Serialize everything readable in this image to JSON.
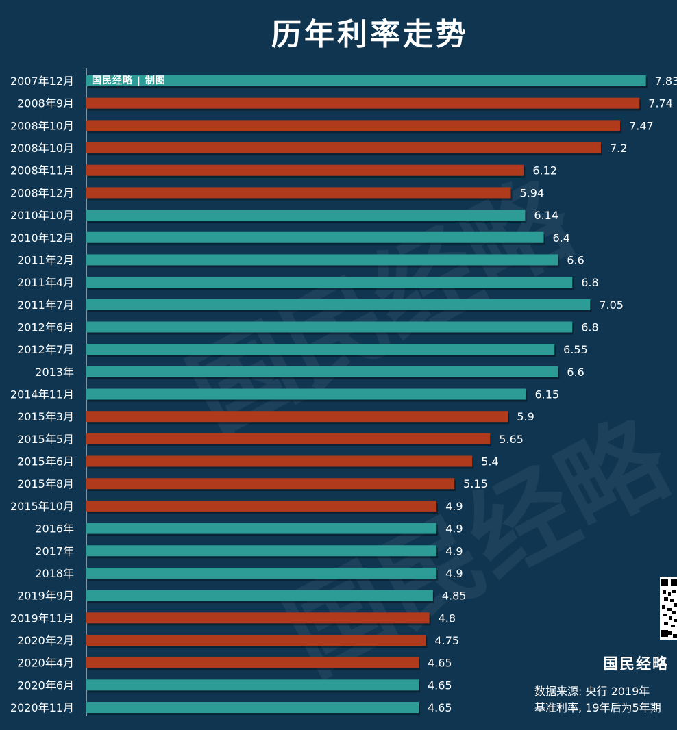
{
  "title": "历年利率走势",
  "credit": "国民经略 | 制图",
  "watermark": "国民经略",
  "brand": "国民经略",
  "source_line1": "数据来源:  央行    2019年",
  "source_line2": "基准利率,  19年后为5年期",
  "colors": {
    "background": "#0f3551",
    "rise_or_flat": "#2e9c96",
    "cut": "#b03b1c",
    "axis": "#7a94a8",
    "text": "#ffffff"
  },
  "chart_data": {
    "type": "bar",
    "orientation": "horizontal",
    "title": "历年利率走势",
    "categories": [
      "2007年12月",
      "2008年9月",
      "2008年10月",
      "2008年10月",
      "2008年11月",
      "2008年12月",
      "2010年10月",
      "2010年12月",
      "2011年2月",
      "2011年4月",
      "2011年7月",
      "2012年6月",
      "2012年7月",
      "2013年",
      "2014年11月",
      "2015年3月",
      "2015年5月",
      "2015年6月",
      "2015年8月",
      "2015年10月",
      "2016年",
      "2017年",
      "2018年",
      "2019年9月",
      "2019年11月",
      "2020年2月",
      "2020年4月",
      "2020年6月",
      "2020年11月"
    ],
    "values": [
      7.83,
      7.74,
      7.47,
      7.2,
      6.12,
      5.94,
      6.14,
      6.4,
      6.6,
      6.8,
      7.05,
      6.8,
      6.55,
      6.6,
      6.15,
      5.9,
      5.65,
      5.4,
      5.15,
      4.9,
      4.9,
      4.9,
      4.9,
      4.85,
      4.8,
      4.75,
      4.65,
      4.65,
      4.65
    ],
    "value_labels": [
      "7.83",
      "7.74",
      "7.47",
      "7.2",
      "6.12",
      "5.94",
      "6.14",
      "6.4",
      "6.6",
      "6.8",
      "7.05",
      "6.8",
      "6.55",
      "6.6",
      "6.15",
      "5.9",
      "5.65",
      "5.4",
      "5.15",
      "4.9",
      "4.9",
      "4.9",
      "4.9",
      "4.85",
      "4.8",
      "4.75",
      "4.65",
      "4.65",
      "4.65"
    ],
    "bar_colors": [
      "teal",
      "red",
      "red",
      "red",
      "red",
      "red",
      "teal",
      "teal",
      "teal",
      "teal",
      "teal",
      "teal",
      "teal",
      "teal",
      "teal",
      "red",
      "red",
      "red",
      "red",
      "red",
      "teal",
      "teal",
      "teal",
      "teal",
      "red",
      "red",
      "red",
      "teal",
      "teal"
    ],
    "grid": false
  }
}
